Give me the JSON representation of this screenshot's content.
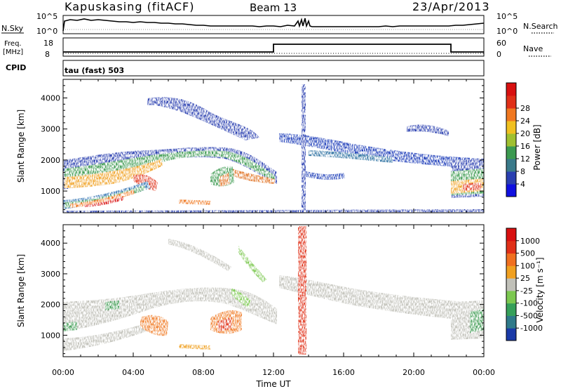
{
  "header": {
    "station": "Kapuskasing (fitACF)",
    "beam": "Beam 13",
    "date": "23/Apr/2013"
  },
  "strip_panels": {
    "nsky": {
      "label": "N.Sky",
      "tick_top": "10^5",
      "tick_bottom": "10^0"
    },
    "nsearch": {
      "label": "N.Search",
      "tick_top": "10^5",
      "tick_bottom": "10^0"
    },
    "freq": {
      "label_line1": "Freq.",
      "label_line2": "[MHz]",
      "tick_top": "18",
      "tick_bottom": "8"
    },
    "nave": {
      "label": "Nave",
      "tick_top": "60",
      "tick_bottom": "0"
    },
    "cpid": {
      "label": "CPID",
      "value": "tau (fast) 503"
    }
  },
  "chart_data": [
    {
      "type": "heatmap",
      "name": "power_panel",
      "xlabel": "",
      "ylabel": "Slant Range [km]",
      "xlim": [
        0,
        24
      ],
      "ylim": [
        300,
        4600
      ],
      "yticks": [
        "1000",
        "2000",
        "3000",
        "4000"
      ],
      "colorbar": {
        "label": "Power [dB]",
        "ticks": [
          "4",
          "8",
          "12",
          "16",
          "20",
          "24",
          "28"
        ],
        "colors": [
          "#1010e0",
          "#2a3fb0",
          "#3a7a8a",
          "#3c9a50",
          "#a0c030",
          "#f0c020",
          "#f07820",
          "#e03018",
          "#d81010"
        ]
      },
      "features": [
        {
          "desc": "main echo band",
          "x": [
            0,
            4,
            8,
            10,
            11.5
          ],
          "y": [
            1100,
            1500,
            2300,
            2100,
            1400
          ]
        },
        {
          "desc": "near-range strong echo",
          "x": [
            0,
            3,
            5.5
          ],
          "y": [
            500,
            900,
            1200
          ]
        },
        {
          "desc": "afternoon band",
          "x": [
            12,
            16,
            20,
            22,
            24
          ],
          "y": [
            2700,
            2300,
            2000,
            1800,
            1700
          ]
        },
        {
          "desc": "post-22 UT low band",
          "x": [
            22,
            24
          ],
          "y": [
            1000,
            1300
          ]
        }
      ]
    },
    {
      "type": "heatmap",
      "name": "velocity_panel",
      "xlabel": "Time UT",
      "ylabel": "Slant Range [km]",
      "xlim": [
        0,
        24
      ],
      "ylim": [
        300,
        4600
      ],
      "xticks": [
        "00:00",
        "04:00",
        "08:00",
        "12:00",
        "16:00",
        "20:00",
        "00:00"
      ],
      "yticks": [
        "1000",
        "2000",
        "3000",
        "4000"
      ],
      "colorbar": {
        "label": "Velocity [m s⁻¹]",
        "ticks": [
          "1000",
          "500",
          "100",
          "25",
          "-25",
          "-100",
          "-500",
          "-1000"
        ],
        "colors": [
          "#1a3aa8",
          "#2f7a8a",
          "#36a05a",
          "#7cc850",
          "#c0c0b8",
          "#f0a020",
          "#f07020",
          "#e03018",
          "#d81010"
        ]
      }
    }
  ]
}
